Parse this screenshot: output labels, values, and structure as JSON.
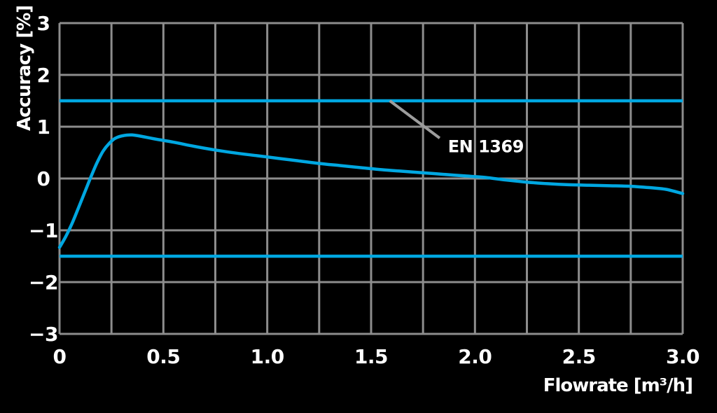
{
  "chart_data": {
    "type": "line",
    "title": "",
    "xlabel": "Flowrate [m³/h]",
    "ylabel": "Accuracy [%]",
    "xlim": [
      0,
      3.0
    ],
    "ylim": [
      -3,
      3
    ],
    "grid": true,
    "x_grid_step": 0.25,
    "y_grid_step": 1,
    "background": "#000000",
    "colors": {
      "grid": "#8d8d8d",
      "text": "#ffffff",
      "series": "#00a7e1",
      "limit": "#00a7e1",
      "leader": "#9d9d9d"
    },
    "x_ticks": {
      "values": [
        0,
        0.5,
        1.0,
        1.5,
        2.0,
        2.5,
        3.0
      ],
      "labels": [
        "0",
        "0.5",
        "1.0",
        "1.5",
        "2.0",
        "2.5",
        "3.0"
      ]
    },
    "y_ticks": {
      "values": [
        3,
        2,
        1,
        0,
        -1,
        -2,
        -3
      ],
      "labels": [
        "3",
        "2",
        "1",
        "0",
        "−1",
        "−2",
        "−3"
      ]
    },
    "series": [
      {
        "name": "accuracy-curve",
        "color": "#00a7e1",
        "points": [
          [
            0.0,
            -1.33
          ],
          [
            0.03,
            -1.12
          ],
          [
            0.06,
            -0.87
          ],
          [
            0.09,
            -0.58
          ],
          [
            0.12,
            -0.28
          ],
          [
            0.15,
            0.02
          ],
          [
            0.18,
            0.3
          ],
          [
            0.21,
            0.53
          ],
          [
            0.24,
            0.68
          ],
          [
            0.27,
            0.78
          ],
          [
            0.31,
            0.83
          ],
          [
            0.35,
            0.84
          ],
          [
            0.4,
            0.81
          ],
          [
            0.45,
            0.77
          ],
          [
            0.55,
            0.7
          ],
          [
            0.65,
            0.62
          ],
          [
            0.75,
            0.55
          ],
          [
            0.85,
            0.49
          ],
          [
            0.95,
            0.44
          ],
          [
            1.05,
            0.39
          ],
          [
            1.15,
            0.34
          ],
          [
            1.25,
            0.29
          ],
          [
            1.35,
            0.25
          ],
          [
            1.45,
            0.21
          ],
          [
            1.55,
            0.17
          ],
          [
            1.65,
            0.14
          ],
          [
            1.75,
            0.11
          ],
          [
            1.85,
            0.08
          ],
          [
            1.95,
            0.05
          ],
          [
            2.05,
            0.02
          ],
          [
            2.15,
            -0.03
          ],
          [
            2.25,
            -0.07
          ],
          [
            2.35,
            -0.1
          ],
          [
            2.45,
            -0.12
          ],
          [
            2.55,
            -0.13
          ],
          [
            2.65,
            -0.14
          ],
          [
            2.75,
            -0.15
          ],
          [
            2.85,
            -0.18
          ],
          [
            2.92,
            -0.21
          ],
          [
            3.0,
            -0.29
          ]
        ]
      }
    ],
    "limit_lines": {
      "label": "EN 1369",
      "values": [
        1.5,
        -1.5
      ],
      "color": "#00a7e1"
    },
    "annotation": {
      "text": "EN 1369",
      "leader_from": [
        1.59,
        1.5
      ],
      "leader_to": [
        1.83,
        0.78
      ],
      "text_pos": [
        1.87,
        0.51
      ]
    }
  }
}
